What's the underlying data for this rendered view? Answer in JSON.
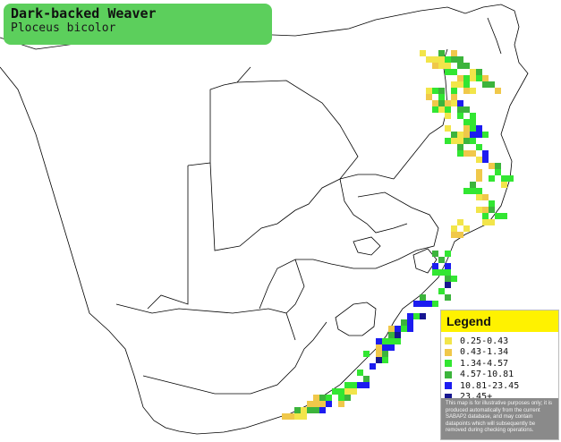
{
  "title": {
    "common_name": "Dark-backed Weaver",
    "scientific_name": "Ploceus bicolor"
  },
  "legend": {
    "heading": "Legend",
    "items": [
      {
        "label": "0.25-0.43",
        "color": "#f2e54a"
      },
      {
        "label": "0.43-1.34",
        "color": "#f0c84a"
      },
      {
        "label": "1.34-4.57",
        "color": "#32e632"
      },
      {
        "label": "4.57-10.81",
        "color": "#3cb43c"
      },
      {
        "label": "10.81-23.45",
        "color": "#1c1cf0"
      },
      {
        "label": "23.45+",
        "color": "#161690"
      }
    ],
    "note": "This map is for illustrative purposes only; it is produced automatically from the current SABAP2 database, and may contain datapoints which will subsequently be removed during checking operations."
  },
  "colors": {
    "title_box": "#5ccf5c",
    "legend_header": "#fff200",
    "border_lines": "#000000"
  }
}
